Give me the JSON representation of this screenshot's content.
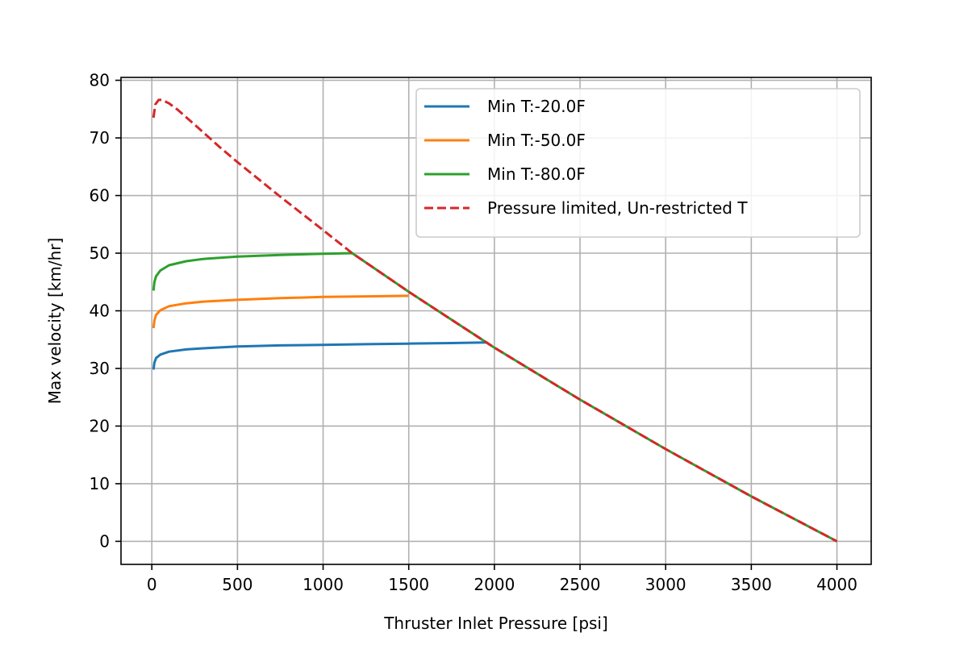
{
  "chart_data": {
    "type": "line",
    "title": "",
    "xlabel": "Thruster Inlet Pressure [psi]",
    "ylabel": "Max velocity [km/hr]",
    "xlim": [
      -180,
      4200
    ],
    "ylim": [
      -4,
      80.5
    ],
    "xticks": [
      0,
      500,
      1000,
      1500,
      2000,
      2500,
      3000,
      3500,
      4000
    ],
    "yticks": [
      0,
      10,
      20,
      30,
      40,
      50,
      60,
      70,
      80
    ],
    "grid": true,
    "legend_position": "top-right",
    "series": [
      {
        "name": "Min T:-20.0F",
        "color": "#1f77b4",
        "style": "solid",
        "points": [
          [
            10,
            29.8
          ],
          [
            15,
            31.0
          ],
          [
            25,
            31.8
          ],
          [
            50,
            32.4
          ],
          [
            100,
            32.9
          ],
          [
            200,
            33.3
          ],
          [
            300,
            33.5
          ],
          [
            500,
            33.8
          ],
          [
            750,
            34.0
          ],
          [
            1000,
            34.1
          ],
          [
            1250,
            34.2
          ],
          [
            1500,
            34.3
          ],
          [
            1750,
            34.4
          ],
          [
            1950,
            34.5
          ]
        ]
      },
      {
        "name": "Min T:-50.0F",
        "color": "#ff7f0e",
        "style": "solid",
        "points": [
          [
            10,
            37.0
          ],
          [
            15,
            38.3
          ],
          [
            25,
            39.3
          ],
          [
            50,
            40.1
          ],
          [
            100,
            40.8
          ],
          [
            200,
            41.3
          ],
          [
            300,
            41.6
          ],
          [
            500,
            41.9
          ],
          [
            750,
            42.2
          ],
          [
            1000,
            42.4
          ],
          [
            1250,
            42.5
          ],
          [
            1500,
            42.6
          ]
        ]
      },
      {
        "name": "Min T:-80.0F",
        "color": "#2ca02c",
        "style": "solid",
        "points": [
          [
            10,
            43.5
          ],
          [
            15,
            45.0
          ],
          [
            25,
            46.0
          ],
          [
            50,
            47.0
          ],
          [
            100,
            47.9
          ],
          [
            200,
            48.6
          ],
          [
            300,
            49.0
          ],
          [
            500,
            49.4
          ],
          [
            750,
            49.7
          ],
          [
            1000,
            49.9
          ],
          [
            1170,
            50.0
          ],
          [
            1500,
            43.3
          ],
          [
            2000,
            33.6
          ],
          [
            2500,
            24.6
          ],
          [
            3000,
            16.0
          ],
          [
            3500,
            7.8
          ],
          [
            4000,
            0
          ]
        ]
      },
      {
        "name": "Pressure limited, Un-restricted T",
        "color": "#d62728",
        "style": "dashed",
        "points": [
          [
            10,
            73.5
          ],
          [
            20,
            75.8
          ],
          [
            40,
            76.6
          ],
          [
            60,
            76.6
          ],
          [
            100,
            76.0
          ],
          [
            150,
            74.9
          ],
          [
            250,
            72.3
          ],
          [
            400,
            68.3
          ],
          [
            500,
            65.8
          ],
          [
            750,
            59.8
          ],
          [
            1000,
            54.0
          ],
          [
            1170,
            50.0
          ],
          [
            1500,
            43.3
          ],
          [
            2000,
            33.6
          ],
          [
            2500,
            24.6
          ],
          [
            3000,
            16.0
          ],
          [
            3500,
            7.8
          ],
          [
            4000,
            0
          ]
        ]
      }
    ]
  }
}
